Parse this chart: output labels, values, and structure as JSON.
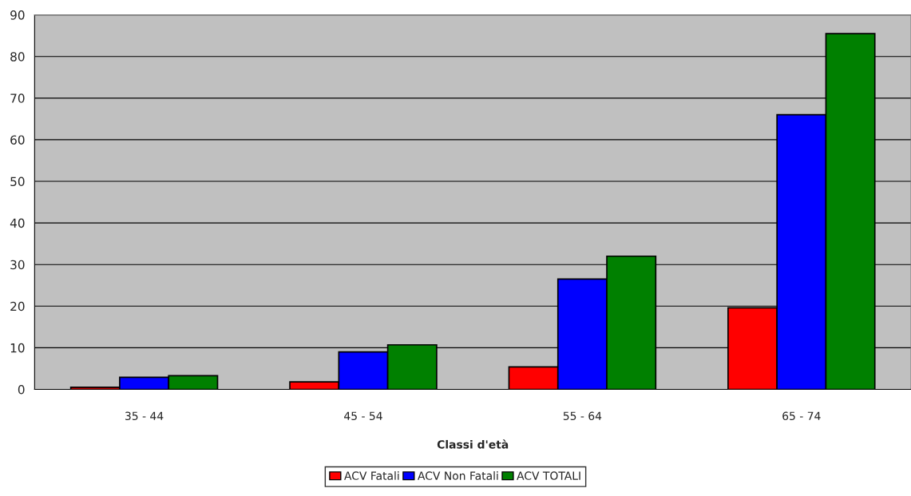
{
  "chart_data": {
    "type": "bar",
    "xlabel": "Classi d'età",
    "categories": [
      "35 - 44",
      "45 - 54",
      "55 - 64",
      "65 - 74"
    ],
    "series": [
      {
        "name": "ACV Fatali",
        "color": "#ff0000",
        "values": [
          0.5,
          1.8,
          5.4,
          19.6
        ]
      },
      {
        "name": "ACV Non Fatali",
        "color": "#0000ff",
        "values": [
          2.9,
          9.0,
          26.5,
          66.0
        ]
      },
      {
        "name": "ACV TOTALI",
        "color": "#008000",
        "values": [
          3.3,
          10.7,
          32.0,
          85.5
        ]
      }
    ],
    "ylim": [
      0,
      90
    ],
    "yticks": [
      0,
      10,
      20,
      30,
      40,
      50,
      60,
      70,
      80,
      90
    ],
    "grid": "y",
    "legend": "bottom"
  }
}
